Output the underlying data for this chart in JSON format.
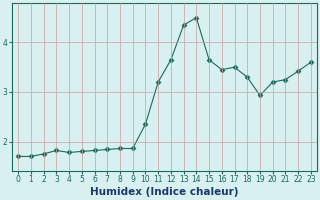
{
  "x": [
    0,
    1,
    2,
    3,
    4,
    5,
    6,
    7,
    8,
    9,
    10,
    11,
    12,
    13,
    14,
    15,
    16,
    17,
    18,
    19,
    20,
    21,
    22,
    23
  ],
  "y": [
    1.7,
    1.7,
    1.75,
    1.82,
    1.78,
    1.8,
    1.82,
    1.84,
    1.86,
    1.86,
    2.35,
    3.2,
    3.65,
    4.35,
    4.5,
    3.65,
    3.45,
    3.5,
    3.3,
    2.93,
    3.2,
    3.25,
    3.42,
    3.6
  ],
  "line_color": "#1a6b5a",
  "marker": "D",
  "marker_size": 2.5,
  "bg_color": "#d8f0f0",
  "grid_color": "#c8a0a0",
  "xlabel": "Humidex (Indice chaleur)",
  "xlim": [
    -0.5,
    23.5
  ],
  "ylim": [
    1.4,
    4.8
  ],
  "yticks": [
    2,
    3,
    4
  ],
  "xticks": [
    0,
    1,
    2,
    3,
    4,
    5,
    6,
    7,
    8,
    9,
    10,
    11,
    12,
    13,
    14,
    15,
    16,
    17,
    18,
    19,
    20,
    21,
    22,
    23
  ],
  "tick_fontsize": 5.5,
  "xlabel_fontsize": 7.5,
  "xlabel_color": "#1a3a6b",
  "tick_color": "#1a6b5a"
}
